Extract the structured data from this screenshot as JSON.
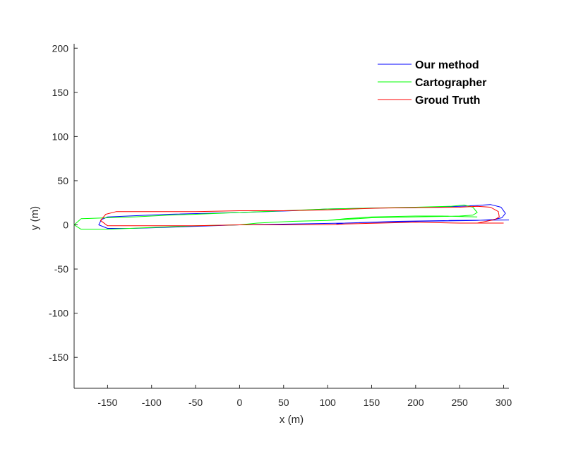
{
  "chart_data": {
    "type": "line",
    "xlabel": "x (m)",
    "ylabel": "y (m)",
    "xlim": [
      -188,
      306
    ],
    "ylim": [
      -185,
      205
    ],
    "xticks": [
      -150,
      -100,
      -50,
      0,
      50,
      100,
      150,
      200,
      250,
      300
    ],
    "xtick_labels": [
      "-150",
      "-100",
      "-50",
      "0",
      "50",
      "100",
      "150",
      "200",
      "250",
      "300"
    ],
    "yticks": [
      200,
      150,
      100,
      50,
      0,
      -50,
      -100,
      -150
    ],
    "ytick_labels": [
      "200",
      "150",
      "100",
      "50",
      "0",
      "-50",
      "-100",
      "-150"
    ],
    "grid": false,
    "legend_position": "top-right",
    "series": [
      {
        "name": "Our method",
        "color": "#0000ff",
        "x": [
          306,
          240,
          180,
          120,
          60,
          0,
          -60,
          -120,
          -150,
          -160,
          -157,
          -150,
          -80,
          0,
          60,
          100,
          150,
          200,
          250,
          270,
          285,
          297,
          302,
          298,
          288,
          270,
          200,
          160,
          120,
          110
        ],
        "y": [
          5.5,
          5,
          4,
          2,
          1,
          0,
          -2,
          -4,
          -4,
          0,
          6,
          9,
          12,
          14,
          16,
          18,
          19,
          19.5,
          21,
          22,
          23,
          20,
          13,
          8,
          6,
          5,
          4,
          3,
          2,
          1
        ]
      },
      {
        "name": "Cartographer",
        "color": "#00ff00",
        "x": [
          270,
          230,
          200,
          150,
          120,
          100,
          60,
          20,
          0,
          -50,
          -100,
          -150,
          -180,
          -188,
          -180,
          -150,
          -120,
          -80,
          -50,
          0,
          50,
          100,
          150,
          200,
          240,
          255,
          265,
          270,
          265,
          250,
          200,
          150,
          100
        ],
        "y": [
          9,
          10,
          10,
          9,
          7,
          5,
          4,
          2,
          0,
          -1,
          -3,
          -5,
          -5,
          0,
          7,
          8,
          9,
          11,
          12,
          14,
          16,
          18,
          19,
          20,
          21,
          22.5,
          20,
          14,
          11,
          10,
          9,
          8,
          5
        ]
      },
      {
        "name": "Groud Truth",
        "color": "#ff0000",
        "x": [
          300,
          250,
          200,
          160,
          120,
          100,
          50,
          0,
          -50,
          -100,
          -150,
          -158,
          -152,
          -140,
          -100,
          -50,
          0,
          50,
          100,
          130,
          160,
          200,
          250,
          270,
          285,
          294,
          295,
          290,
          280,
          270
        ],
        "y": [
          2,
          2,
          3,
          2,
          1,
          0,
          0,
          0,
          -1,
          -1,
          -1,
          5,
          12,
          15,
          15,
          15,
          16,
          16,
          17,
          18,
          19,
          19.5,
          20,
          21,
          20,
          15,
          9,
          6,
          4,
          2
        ]
      }
    ]
  }
}
